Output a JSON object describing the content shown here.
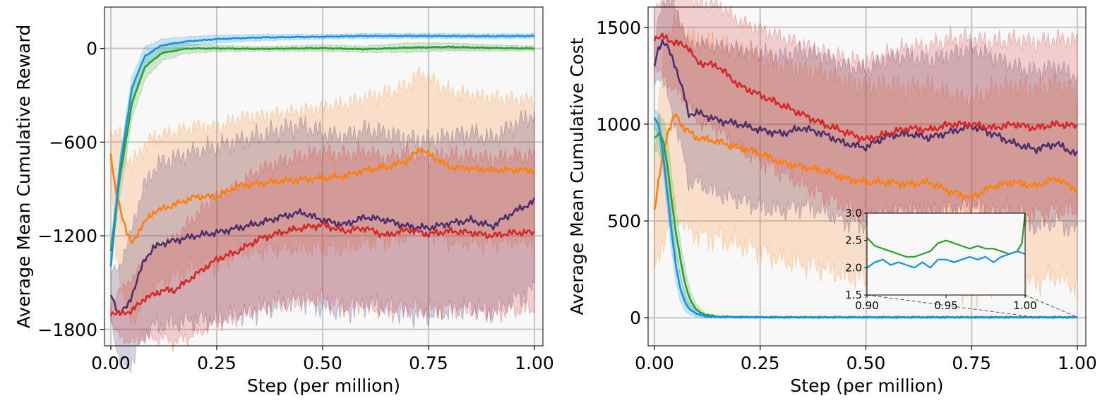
{
  "chart_data": [
    {
      "type": "line",
      "title": "",
      "xlabel": "Step (per million)",
      "ylabel": "Average Mean Cumulative Reward",
      "xlim": [
        -0.015,
        1.02
      ],
      "ylim": [
        -1905,
        265
      ],
      "xticks": [
        0.0,
        0.25,
        0.5,
        0.75,
        1.0
      ],
      "xtick_labels": [
        "0.00",
        "0.25",
        "0.50",
        "0.75",
        "1.00"
      ],
      "yticks": [
        0,
        -600,
        -1200,
        -1800
      ],
      "ytick_labels": [
        "0",
        "−600",
        "−1200",
        "−1800"
      ],
      "grid": true,
      "series": [
        {
          "name": "blue",
          "color": "#1192e8",
          "x": [
            0,
            0.02,
            0.05,
            0.08,
            0.12,
            0.18,
            0.25,
            0.35,
            0.5,
            0.6,
            0.75,
            0.9,
            1.0
          ],
          "values": [
            -1400,
            -800,
            -250,
            -50,
            20,
            45,
            60,
            70,
            75,
            80,
            80,
            78,
            80
          ],
          "band": [
            40,
            80,
            70,
            60,
            40,
            30,
            25,
            20,
            15,
            15,
            15,
            15,
            15
          ]
        },
        {
          "name": "green",
          "color": "#2ca02c",
          "x": [
            0,
            0.02,
            0.05,
            0.08,
            0.12,
            0.18,
            0.25,
            0.35,
            0.5,
            0.6,
            0.7,
            0.8,
            0.9,
            1.0
          ],
          "values": [
            -1300,
            -850,
            -350,
            -120,
            -30,
            0,
            0,
            -3,
            2,
            -5,
            5,
            10,
            3,
            0
          ],
          "band": [
            60,
            120,
            100,
            80,
            50,
            30,
            20,
            15,
            20,
            20,
            30,
            25,
            20,
            15
          ]
        },
        {
          "name": "orange",
          "color": "#ff7f0e",
          "x": [
            0,
            0.01,
            0.02,
            0.04,
            0.05,
            0.07,
            0.1,
            0.15,
            0.2,
            0.25,
            0.3,
            0.4,
            0.5,
            0.55,
            0.6,
            0.65,
            0.7,
            0.73,
            0.8,
            0.9,
            1.0
          ],
          "values": [
            -680,
            -900,
            -1000,
            -1200,
            -1250,
            -1150,
            -1050,
            -1000,
            -950,
            -950,
            -880,
            -850,
            -830,
            -820,
            -780,
            -760,
            -720,
            -640,
            -760,
            -780,
            -780
          ],
          "band": [
            150,
            350,
            450,
            500,
            500,
            500,
            480,
            460,
            450,
            440,
            430,
            430,
            450,
            460,
            460,
            470,
            480,
            480,
            480,
            460,
            450
          ]
        },
        {
          "name": "purple",
          "color": "#4b2e6b",
          "x": [
            0,
            0.02,
            0.04,
            0.06,
            0.08,
            0.1,
            0.12,
            0.2,
            0.25,
            0.3,
            0.35,
            0.4,
            0.45,
            0.5,
            0.55,
            0.6,
            0.65,
            0.7,
            0.75,
            0.8,
            0.85,
            0.9,
            0.95,
            1.0
          ],
          "values": [
            -1580,
            -1700,
            -1650,
            -1500,
            -1350,
            -1280,
            -1250,
            -1200,
            -1180,
            -1150,
            -1120,
            -1080,
            -1050,
            -1100,
            -1130,
            -1080,
            -1100,
            -1140,
            -1150,
            -1120,
            -1100,
            -1140,
            -1050,
            -980
          ],
          "band": [
            150,
            300,
            400,
            450,
            480,
            500,
            520,
            540,
            550,
            560,
            560,
            560,
            560,
            560,
            560,
            560,
            560,
            560,
            560,
            560,
            560,
            560,
            560,
            560
          ]
        },
        {
          "name": "red",
          "color": "#d62728",
          "x": [
            0,
            0.02,
            0.05,
            0.08,
            0.1,
            0.12,
            0.15,
            0.2,
            0.25,
            0.3,
            0.35,
            0.4,
            0.45,
            0.5,
            0.55,
            0.6,
            0.65,
            0.7,
            0.75,
            0.8,
            0.85,
            0.9,
            0.95,
            1.0
          ],
          "values": [
            -1690,
            -1700,
            -1680,
            -1600,
            -1580,
            -1550,
            -1550,
            -1450,
            -1350,
            -1300,
            -1220,
            -1180,
            -1150,
            -1130,
            -1170,
            -1150,
            -1200,
            -1160,
            -1190,
            -1170,
            -1180,
            -1200,
            -1180,
            -1180
          ],
          "band": [
            50,
            150,
            200,
            250,
            280,
            300,
            330,
            380,
            400,
            420,
            440,
            450,
            460,
            470,
            480,
            490,
            490,
            490,
            490,
            490,
            490,
            490,
            490,
            490
          ]
        }
      ]
    },
    {
      "type": "line",
      "title": "",
      "xlabel": "Step (per million)",
      "ylabel": "Average Mean Cumulative Cost",
      "xlim": [
        -0.015,
        1.02
      ],
      "ylim": [
        -145,
        1605
      ],
      "xticks": [
        0.0,
        0.25,
        0.5,
        0.75,
        1.0
      ],
      "xtick_labels": [
        "0.00",
        "0.25",
        "0.50",
        "0.75",
        "1.00"
      ],
      "yticks": [
        0,
        500,
        1000,
        1500
      ],
      "ytick_labels": [
        "0",
        "500",
        "1000",
        "1500"
      ],
      "grid": true,
      "series": [
        {
          "name": "blue",
          "color": "#1192e8",
          "x": [
            0,
            0.01,
            0.02,
            0.03,
            0.04,
            0.05,
            0.06,
            0.07,
            0.08,
            0.1,
            0.12,
            0.15,
            0.2,
            0.3,
            0.5,
            0.7,
            1.0
          ],
          "values": [
            1030,
            1000,
            850,
            650,
            450,
            280,
            160,
            90,
            50,
            20,
            8,
            4,
            3,
            2,
            2,
            2,
            2
          ],
          "band": [
            40,
            60,
            80,
            90,
            90,
            80,
            70,
            50,
            30,
            15,
            8,
            4,
            2,
            1,
            1,
            1,
            1
          ]
        },
        {
          "name": "green",
          "color": "#2ca02c",
          "x": [
            0,
            0.01,
            0.02,
            0.03,
            0.04,
            0.05,
            0.06,
            0.07,
            0.08,
            0.09,
            0.1,
            0.12,
            0.15,
            0.2,
            0.3,
            0.5,
            0.7,
            1.0
          ],
          "values": [
            930,
            950,
            920,
            800,
            620,
            450,
            320,
            200,
            120,
            70,
            40,
            15,
            6,
            4,
            3,
            3,
            3,
            3
          ],
          "band": [
            60,
            100,
            120,
            130,
            130,
            120,
            100,
            80,
            60,
            40,
            25,
            10,
            5,
            3,
            2,
            2,
            2,
            2
          ]
        },
        {
          "name": "orange",
          "color": "#ff7f0e",
          "x": [
            0,
            0.01,
            0.02,
            0.03,
            0.05,
            0.07,
            0.1,
            0.15,
            0.2,
            0.25,
            0.3,
            0.35,
            0.4,
            0.45,
            0.5,
            0.55,
            0.6,
            0.65,
            0.7,
            0.75,
            0.8,
            0.85,
            0.9,
            0.95,
            1.0
          ],
          "values": [
            550,
            700,
            850,
            950,
            1050,
            980,
            930,
            910,
            880,
            850,
            800,
            780,
            760,
            720,
            700,
            700,
            690,
            700,
            650,
            620,
            680,
            700,
            680,
            720,
            660
          ],
          "band": [
            300,
            400,
            450,
            500,
            500,
            500,
            500,
            500,
            500,
            500,
            500,
            500,
            500,
            500,
            500,
            500,
            500,
            500,
            500,
            500,
            500,
            500,
            500,
            500,
            500
          ]
        },
        {
          "name": "purple",
          "color": "#4b2e6b",
          "x": [
            0,
            0.01,
            0.02,
            0.03,
            0.05,
            0.07,
            0.08,
            0.1,
            0.15,
            0.2,
            0.25,
            0.3,
            0.35,
            0.4,
            0.45,
            0.5,
            0.55,
            0.6,
            0.65,
            0.7,
            0.75,
            0.8,
            0.85,
            0.9,
            0.95,
            1.0
          ],
          "values": [
            1300,
            1400,
            1430,
            1400,
            1300,
            1150,
            1050,
            1060,
            1020,
            1000,
            970,
            950,
            980,
            950,
            900,
            880,
            940,
            950,
            930,
            960,
            990,
            950,
            900,
            870,
            900,
            840
          ],
          "band": [
            100,
            150,
            200,
            250,
            300,
            330,
            350,
            360,
            380,
            390,
            400,
            400,
            400,
            400,
            400,
            400,
            400,
            400,
            400,
            400,
            400,
            400,
            400,
            400,
            400,
            400
          ]
        },
        {
          "name": "red",
          "color": "#d62728",
          "x": [
            0,
            0.02,
            0.05,
            0.08,
            0.1,
            0.15,
            0.2,
            0.25,
            0.3,
            0.35,
            0.4,
            0.45,
            0.5,
            0.55,
            0.6,
            0.65,
            0.7,
            0.75,
            0.8,
            0.85,
            0.9,
            0.95,
            1.0
          ],
          "values": [
            1450,
            1450,
            1420,
            1400,
            1320,
            1300,
            1200,
            1150,
            1100,
            1050,
            1000,
            960,
            920,
            950,
            980,
            970,
            1000,
            1000,
            980,
            1000,
            980,
            1000,
            990
          ],
          "band": [
            150,
            200,
            250,
            280,
            300,
            320,
            330,
            340,
            350,
            360,
            370,
            380,
            400,
            410,
            420,
            430,
            440,
            440,
            440,
            440,
            440,
            440,
            440
          ]
        }
      ],
      "inset": {
        "xlim": [
          0.9,
          1.0
        ],
        "ylim": [
          1.5,
          3.0
        ],
        "xticks": [
          0.9,
          0.95,
          1.0
        ],
        "xtick_labels": [
          "0.90",
          "0.95",
          "1.00"
        ],
        "yticks": [
          1.5,
          2.0,
          2.5,
          3.0
        ],
        "ytick_labels": [
          "1.5",
          "2.0",
          "2.5",
          "3.0"
        ],
        "series": [
          {
            "name": "green",
            "color": "#2ca02c",
            "x": [
              0.9,
              0.905,
              0.91,
              0.915,
              0.92,
              0.925,
              0.93,
              0.935,
              0.94,
              0.945,
              0.95,
              0.955,
              0.96,
              0.965,
              0.97,
              0.975,
              0.98,
              0.985,
              0.99,
              0.995,
              0.998,
              1.0
            ],
            "values": [
              2.55,
              2.4,
              2.35,
              2.3,
              2.25,
              2.2,
              2.2,
              2.25,
              2.3,
              2.45,
              2.5,
              2.45,
              2.4,
              2.35,
              2.4,
              2.35,
              2.35,
              2.3,
              2.25,
              2.3,
              2.45,
              3.0
            ]
          },
          {
            "name": "blue",
            "color": "#1192e8",
            "x": [
              0.9,
              0.905,
              0.91,
              0.915,
              0.92,
              0.925,
              0.93,
              0.935,
              0.94,
              0.945,
              0.95,
              0.955,
              0.96,
              0.965,
              0.97,
              0.975,
              0.98,
              0.985,
              0.99,
              0.995,
              1.0
            ],
            "values": [
              2.0,
              2.1,
              2.15,
              2.05,
              2.1,
              2.05,
              2.0,
              2.1,
              2.0,
              2.15,
              2.15,
              2.1,
              2.15,
              2.2,
              2.15,
              2.2,
              2.1,
              2.2,
              2.25,
              2.3,
              2.25
            ]
          }
        ]
      }
    }
  ]
}
